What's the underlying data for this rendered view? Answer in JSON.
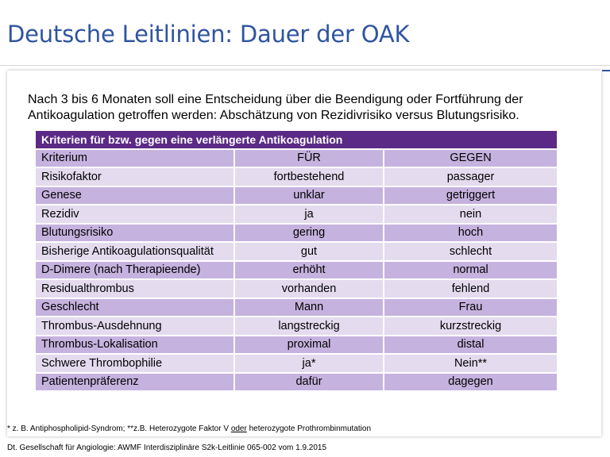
{
  "title": "Deutsche Leitlinien: Dauer der OAK",
  "intro": "Nach 3 bis 6 Monaten soll eine Entscheidung über die Beendigung oder Fortführung der Antikoagulation getroffen werden: Abschätzung von Rezidivrisiko versus Blutungsrisiko.",
  "table": {
    "header": "Kriterien für bzw. gegen eine verlängerte Antikoagulation",
    "columns": [
      "Kriterium",
      "FÜR",
      "GEGEN"
    ],
    "rows": [
      [
        "Risikofaktor",
        "fortbestehend",
        "passager"
      ],
      [
        "Genese",
        "unklar",
        "getriggert"
      ],
      [
        "Rezidiv",
        "ja",
        "nein"
      ],
      [
        "Blutungsrisiko",
        "gering",
        "hoch"
      ],
      [
        "Bisherige Antikoagulationsqualität",
        "gut",
        "schlecht"
      ],
      [
        "D-Dimere (nach Therapieende)",
        "erhöht",
        "normal"
      ],
      [
        "Residualthrombus",
        "vorhanden",
        "fehlend"
      ],
      [
        "Geschlecht",
        "Mann",
        "Frau"
      ],
      [
        "Thrombus-Ausdehnung",
        "langstreckig",
        "kurzstreckig"
      ],
      [
        "Thrombus-Lokalisation",
        "proximal",
        "distal"
      ],
      [
        "Schwere Thrombophilie",
        "ja*",
        "Nein**"
      ],
      [
        "Patientenpräferenz",
        "dafür",
        "dagegen"
      ]
    ]
  },
  "footnote": {
    "part1": "* z. B. Antiphospholipid-Syndrom; **z.B. Heterozygote Faktor V ",
    "underlined": "oder",
    "part2": " heterozygote Prothrombinmutation"
  },
  "source": "Dt. Gesellschaft für Angiologie: AWMF Interdisziplinäre S2k-Leitlinie 065-002 vom 1.9.2015",
  "colors": {
    "title": "#2f54a0",
    "header_bg": "#5b2a86",
    "row_dark": "#c6b2df",
    "row_light": "#e4dbef"
  }
}
